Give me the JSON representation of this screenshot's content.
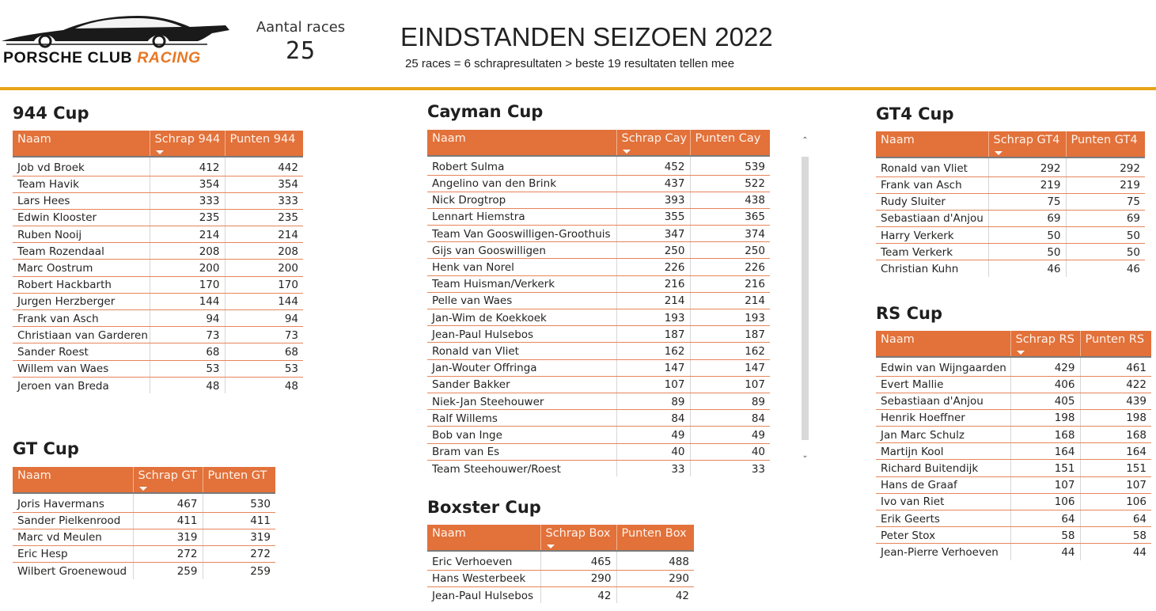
{
  "logo": {
    "word1": "PORSCHE CLUB ",
    "word2": "RACING"
  },
  "races": {
    "label": "Aantal races",
    "value": "25"
  },
  "header": {
    "title": "EINDSTANDEN SEIZOEN 2022",
    "subtitle": "25 races = 6 schrapresultaten > beste 19 resultaten tellen mee"
  },
  "colors": {
    "header_bg": "#e2713a",
    "accent_line": "#e8a317",
    "row_divider": "#e8845a"
  },
  "icons": {
    "sort": "sort-descending-icon",
    "scroll_up": "chevron-up-icon",
    "scroll_down": "chevron-down-icon"
  },
  "cups": {
    "c944": {
      "title": "944 Cup",
      "columns": [
        "Naam",
        "Schrap 944",
        "Punten 944"
      ],
      "rows": [
        [
          "Job vd Broek",
          "412",
          "442"
        ],
        [
          "Team Havik",
          "354",
          "354"
        ],
        [
          "Lars Hees",
          "333",
          "333"
        ],
        [
          "Edwin Klooster",
          "235",
          "235"
        ],
        [
          "Ruben Nooij",
          "214",
          "214"
        ],
        [
          "Team Rozendaal",
          "208",
          "208"
        ],
        [
          "Marc Oostrum",
          "200",
          "200"
        ],
        [
          "Robert Hackbarth",
          "170",
          "170"
        ],
        [
          "Jurgen Herzberger",
          "144",
          "144"
        ],
        [
          "Frank van Asch",
          "94",
          "94"
        ],
        [
          "Christiaan van Garderen",
          "73",
          "73"
        ],
        [
          "Sander Roest",
          "68",
          "68"
        ],
        [
          "Willem van Waes",
          "53",
          "53"
        ],
        [
          "Jeroen van Breda",
          "48",
          "48"
        ]
      ]
    },
    "gt": {
      "title": "GT Cup",
      "columns": [
        "Naam",
        "Schrap GT",
        "Punten GT"
      ],
      "rows": [
        [
          "Joris Havermans",
          "467",
          "530"
        ],
        [
          "Sander Pielkenrood",
          "411",
          "411"
        ],
        [
          "Marc vd Meulen",
          "319",
          "319"
        ],
        [
          "Eric Hesp",
          "272",
          "272"
        ],
        [
          "Wilbert Groenewoud",
          "259",
          "259"
        ]
      ]
    },
    "cayman": {
      "title": "Cayman Cup",
      "columns": [
        "Naam",
        "Schrap Cay",
        "Punten Cay"
      ],
      "rows": [
        [
          "Robert Sulma",
          "452",
          "539"
        ],
        [
          "Angelino van den Brink",
          "437",
          "522"
        ],
        [
          "Nick Drogtrop",
          "393",
          "438"
        ],
        [
          "Lennart Hiemstra",
          "355",
          "365"
        ],
        [
          "Team Van Gooswilligen-Groothuis",
          "347",
          "374"
        ],
        [
          "Gijs van Gooswilligen",
          "250",
          "250"
        ],
        [
          "Henk van Norel",
          "226",
          "226"
        ],
        [
          "Team Huisman/Verkerk",
          "216",
          "216"
        ],
        [
          "Pelle van Waes",
          "214",
          "214"
        ],
        [
          "Jan-Wim de Koekkoek",
          "193",
          "193"
        ],
        [
          "Jean-Paul Hulsebos",
          "187",
          "187"
        ],
        [
          "Ronald van Vliet",
          "162",
          "162"
        ],
        [
          "Jan-Wouter Offringa",
          "147",
          "147"
        ],
        [
          "Sander Bakker",
          "107",
          "107"
        ],
        [
          "Niek-Jan Steehouwer",
          "89",
          "89"
        ],
        [
          "Ralf Willems",
          "84",
          "84"
        ],
        [
          "Bob van Inge",
          "49",
          "49"
        ],
        [
          "Bram van Es",
          "40",
          "40"
        ],
        [
          "Team Steehouwer/Roest",
          "33",
          "33"
        ]
      ]
    },
    "boxster": {
      "title": "Boxster Cup",
      "columns": [
        "Naam",
        "Schrap Box",
        "Punten Box"
      ],
      "rows": [
        [
          "Eric Verhoeven",
          "465",
          "488"
        ],
        [
          "Hans Westerbeek",
          "290",
          "290"
        ],
        [
          "Jean-Paul Hulsebos",
          "42",
          "42"
        ]
      ]
    },
    "gt4": {
      "title": "GT4 Cup",
      "columns": [
        "Naam",
        "Schrap GT4",
        "Punten GT4"
      ],
      "rows": [
        [
          "Ronald van Vliet",
          "292",
          "292"
        ],
        [
          "Frank van Asch",
          "219",
          "219"
        ],
        [
          "Rudy Sluiter",
          "75",
          "75"
        ],
        [
          "Sebastiaan d'Anjou",
          "69",
          "69"
        ],
        [
          "Harry Verkerk",
          "50",
          "50"
        ],
        [
          "Team Verkerk",
          "50",
          "50"
        ],
        [
          "Christian Kuhn",
          "46",
          "46"
        ]
      ]
    },
    "rs": {
      "title": "RS Cup",
      "columns": [
        "Naam",
        "Schrap RS",
        "Punten RS"
      ],
      "rows": [
        [
          "Edwin van Wijngaarden",
          "429",
          "461"
        ],
        [
          "Evert Mallie",
          "406",
          "422"
        ],
        [
          "Sebastiaan d'Anjou",
          "405",
          "439"
        ],
        [
          "Henrik Hoeffner",
          "198",
          "198"
        ],
        [
          "Jan Marc Schulz",
          "168",
          "168"
        ],
        [
          "Martijn Kool",
          "164",
          "164"
        ],
        [
          "Richard Buitendijk",
          "151",
          "151"
        ],
        [
          "Hans de Graaf",
          "107",
          "107"
        ],
        [
          "Ivo van Riet",
          "106",
          "106"
        ],
        [
          "Erik Geerts",
          "64",
          "64"
        ],
        [
          "Peter Stox",
          "58",
          "58"
        ],
        [
          "Jean-Pierre Verhoeven",
          "44",
          "44"
        ]
      ]
    }
  }
}
